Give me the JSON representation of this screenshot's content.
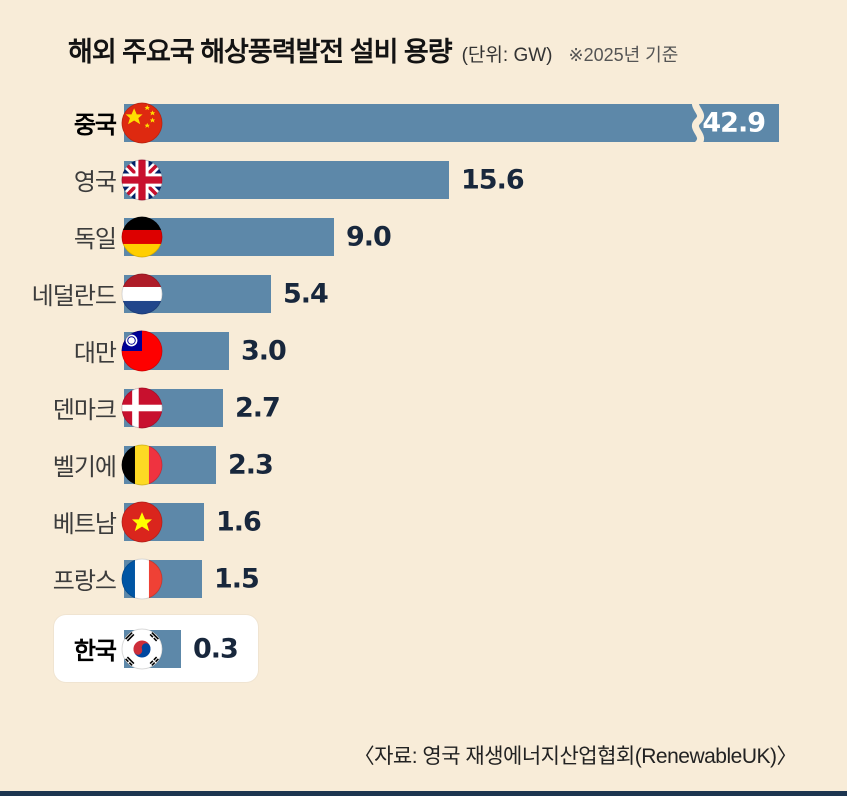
{
  "title": {
    "main": "해외 주요국 해상풍력발전 설비 용량",
    "unit": "(단위: GW)",
    "note": "※2025년 기준"
  },
  "source": "〈자료: 영국 재생에너지산업협회(RenewableUK)〉",
  "colors": {
    "background": "#f8ecd8",
    "bar": "#5d88a9",
    "value_text": "#18273c",
    "value_text_inside_bar": "#ffffff",
    "highlight_box": "#ffffff",
    "bottom_rule": "#1d3550"
  },
  "chart_data": {
    "type": "bar",
    "orientation": "horizontal",
    "title": "해외 주요국 해상풍력발전 설비 용량",
    "unit": "GW",
    "as_of": "2025년 기준",
    "categories": [
      "중국",
      "영국",
      "독일",
      "네덜란드",
      "대만",
      "덴마크",
      "벨기에",
      "베트남",
      "프랑스",
      "한국"
    ],
    "values": [
      42.9,
      15.6,
      9.0,
      5.4,
      3.0,
      2.7,
      2.3,
      1.6,
      1.5,
      0.3
    ],
    "display_values": [
      "42.9",
      "15.6",
      "9.0",
      "5.4",
      "3.0",
      "2.7",
      "2.3",
      "1.6",
      "1.5",
      "0.3"
    ],
    "flags": [
      "cn",
      "gb",
      "de",
      "nl",
      "tw",
      "dk",
      "be",
      "vn",
      "fr",
      "kr"
    ],
    "flag_icons": [
      "flag-china-icon",
      "flag-uk-icon",
      "flag-germany-icon",
      "flag-netherlands-icon",
      "flag-taiwan-icon",
      "flag-denmark-icon",
      "flag-belgium-icon",
      "flag-vietnam-icon",
      "flag-france-icon",
      "flag-korea-icon"
    ],
    "emphasized_categories": [
      "중국",
      "한국"
    ],
    "highlighted_category": "한국",
    "truncated_category": "중국",
    "value_label_inside_bar": [
      "중국"
    ],
    "xlim": [
      0,
      43
    ],
    "grid": false,
    "legend": false
  }
}
